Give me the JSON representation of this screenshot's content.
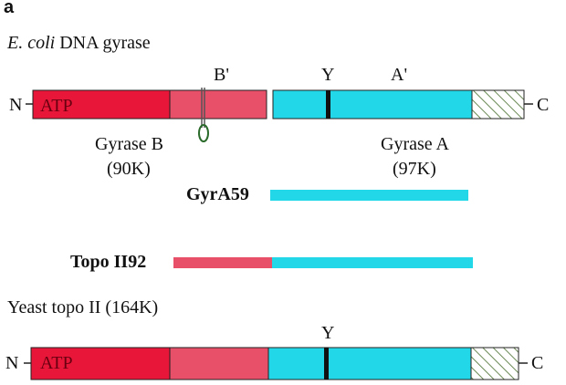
{
  "panel_label": "a",
  "ecoli": {
    "title_italic": "E. coli",
    "title_rest": " DNA gyrase",
    "n_term": "N",
    "c_term": "C",
    "atp": "ATP",
    "b_prime": "B'",
    "y": "Y",
    "a_prime": "A'",
    "gyrase_b": "Gyrase B",
    "gyrase_b_size": "(90K)",
    "gyrase_a": "Gyrase A",
    "gyrase_a_size": "(97K)"
  },
  "constructs": {
    "gyra59": "GyrA59",
    "topo2_92": "Topo II92"
  },
  "yeast": {
    "title": "Yeast topo II (164K)",
    "n_term": "N",
    "c_term": "C",
    "atp": "ATP",
    "y": "Y"
  },
  "colors": {
    "atp_red": "#e8173a",
    "b_pink": "#e8506a",
    "cyan": "#22d8e8",
    "hatch": "#6a8a55",
    "outline": "#222222"
  }
}
